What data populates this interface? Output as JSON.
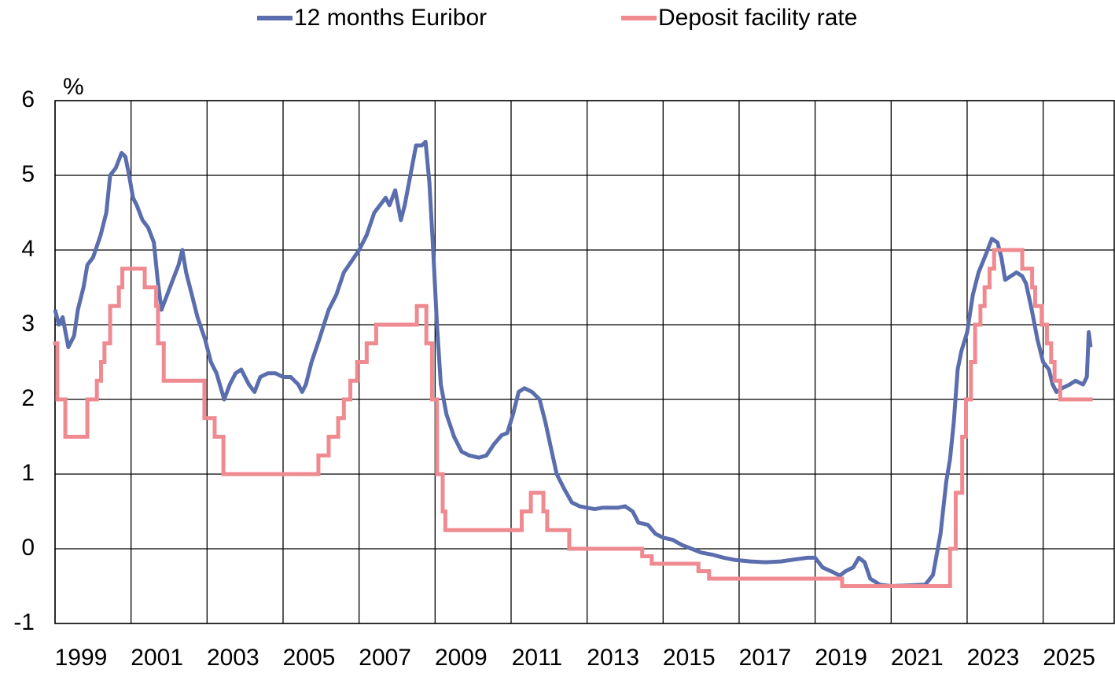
{
  "chart_data": {
    "type": "line",
    "y_unit_label": "%",
    "legend": "top",
    "grid": true,
    "xlim": [
      1999,
      2026.87
    ],
    "ylim": [
      -1,
      6
    ],
    "yticks": [
      -1,
      0,
      1,
      2,
      3,
      4,
      5,
      6
    ],
    "xticks": [
      {
        "value": 1999,
        "label": "1999"
      },
      {
        "value": 2001,
        "label": "2001"
      },
      {
        "value": 2003,
        "label": "2003"
      },
      {
        "value": 2005,
        "label": "2005"
      },
      {
        "value": 2007,
        "label": "2007"
      },
      {
        "value": 2009,
        "label": "2009"
      },
      {
        "value": 2011,
        "label": "2011"
      },
      {
        "value": 2013,
        "label": "2013"
      },
      {
        "value": 2015,
        "label": "2015"
      },
      {
        "value": 2017,
        "label": "2017"
      },
      {
        "value": 2019,
        "label": "2019"
      },
      {
        "value": 2021,
        "label": "2021"
      },
      {
        "value": 2023,
        "label": "2023"
      },
      {
        "value": 2025,
        "label": "2025"
      }
    ],
    "series": [
      {
        "name": "12 months Euribor",
        "color": "#5a6dad",
        "drawstyle": "line",
        "x": [
          1999.0,
          1999.1,
          1999.2,
          1999.35,
          1999.5,
          1999.6,
          1999.75,
          1999.85,
          2000.0,
          2000.2,
          2000.35,
          2000.45,
          2000.6,
          2000.75,
          2000.85,
          2000.95,
          2001.05,
          2001.15,
          2001.3,
          2001.45,
          2001.6,
          2001.7,
          2001.8,
          2001.95,
          2002.1,
          2002.25,
          2002.35,
          2002.45,
          2002.6,
          2002.75,
          2002.95,
          2003.1,
          2003.25,
          2003.45,
          2003.6,
          2003.75,
          2003.9,
          2004.1,
          2004.25,
          2004.4,
          2004.6,
          2004.8,
          2005.0,
          2005.2,
          2005.4,
          2005.5,
          2005.6,
          2005.75,
          2005.95,
          2006.2,
          2006.4,
          2006.6,
          2006.8,
          2007.0,
          2007.2,
          2007.4,
          2007.55,
          2007.7,
          2007.8,
          2007.95,
          2008.1,
          2008.2,
          2008.35,
          2008.5,
          2008.65,
          2008.75,
          2008.85,
          2008.95,
          2009.05,
          2009.15,
          2009.3,
          2009.5,
          2009.7,
          2009.9,
          2010.15,
          2010.35,
          2010.55,
          2010.75,
          2010.9,
          2011.05,
          2011.2,
          2011.35,
          2011.55,
          2011.75,
          2011.9,
          2012.05,
          2012.2,
          2012.4,
          2012.6,
          2012.8,
          2013.0,
          2013.2,
          2013.4,
          2013.6,
          2013.8,
          2014.0,
          2014.2,
          2014.35,
          2014.6,
          2014.8,
          2015.0,
          2015.25,
          2015.5,
          2015.75,
          2016.0,
          2016.3,
          2016.6,
          2016.9,
          2017.3,
          2017.7,
          2018.1,
          2018.5,
          2018.8,
          2019.0,
          2019.2,
          2019.5,
          2019.65,
          2019.8,
          2020.0,
          2020.15,
          2020.3,
          2020.45,
          2020.7,
          2021.0,
          2021.5,
          2021.9,
          2022.1,
          2022.3,
          2022.45,
          2022.55,
          2022.65,
          2022.75,
          2022.85,
          2023.0,
          2023.15,
          2023.3,
          2023.5,
          2023.65,
          2023.8,
          2023.9,
          2024.0,
          2024.15,
          2024.3,
          2024.45,
          2024.55,
          2024.7,
          2024.85,
          2025.0,
          2025.15,
          2025.25,
          2025.35,
          2025.5,
          2025.7,
          2025.85,
          2026.05,
          2026.15,
          2026.2,
          2026.25
        ],
        "values": [
          3.2,
          3.0,
          3.1,
          2.7,
          2.85,
          3.2,
          3.5,
          3.8,
          3.9,
          4.2,
          4.5,
          5.0,
          5.1,
          5.3,
          5.25,
          5.0,
          4.7,
          4.6,
          4.4,
          4.3,
          4.1,
          3.6,
          3.2,
          3.4,
          3.6,
          3.8,
          4.0,
          3.7,
          3.4,
          3.1,
          2.8,
          2.5,
          2.35,
          2.0,
          2.2,
          2.35,
          2.4,
          2.2,
          2.1,
          2.3,
          2.35,
          2.35,
          2.3,
          2.3,
          2.2,
          2.1,
          2.2,
          2.5,
          2.8,
          3.2,
          3.4,
          3.7,
          3.85,
          4.0,
          4.2,
          4.5,
          4.6,
          4.7,
          4.6,
          4.8,
          4.4,
          4.6,
          5.0,
          5.4,
          5.4,
          5.45,
          4.9,
          4.0,
          3.0,
          2.2,
          1.8,
          1.5,
          1.3,
          1.25,
          1.22,
          1.25,
          1.4,
          1.52,
          1.55,
          1.8,
          2.1,
          2.15,
          2.1,
          2.0,
          1.7,
          1.35,
          1.0,
          0.8,
          0.62,
          0.57,
          0.55,
          0.53,
          0.55,
          0.55,
          0.55,
          0.57,
          0.5,
          0.35,
          0.32,
          0.2,
          0.15,
          0.12,
          0.05,
          0.0,
          -0.05,
          -0.08,
          -0.12,
          -0.15,
          -0.17,
          -0.18,
          -0.17,
          -0.14,
          -0.12,
          -0.12,
          -0.25,
          -0.32,
          -0.36,
          -0.3,
          -0.25,
          -0.12,
          -0.18,
          -0.4,
          -0.48,
          -0.5,
          -0.49,
          -0.48,
          -0.35,
          0.2,
          0.9,
          1.2,
          1.7,
          2.4,
          2.65,
          2.9,
          3.4,
          3.7,
          3.95,
          4.15,
          4.1,
          3.9,
          3.6,
          3.65,
          3.7,
          3.65,
          3.55,
          3.2,
          2.8,
          2.5,
          2.4,
          2.2,
          2.1,
          2.15,
          2.2,
          2.25,
          2.2,
          2.3,
          2.9,
          2.7
        ]
      },
      {
        "name": "Deposit facility rate",
        "color": "#ef8a91",
        "drawstyle": "steps-post",
        "x": [
          1999.0,
          1999.06,
          1999.27,
          1999.85,
          2000.1,
          2000.21,
          2000.3,
          2000.45,
          2000.68,
          2000.77,
          2001.36,
          2001.66,
          2001.71,
          2001.86,
          2002.93,
          2003.2,
          2003.43,
          2005.93,
          2006.2,
          2006.45,
          2006.6,
          2006.77,
          2006.95,
          2007.2,
          2007.45,
          2008.52,
          2008.77,
          2008.92,
          2009.05,
          2009.2,
          2009.27,
          2011.28,
          2011.52,
          2011.85,
          2011.95,
          2012.53,
          2014.45,
          2014.7,
          2015.93,
          2016.21,
          2019.71,
          2022.55,
          2022.7,
          2022.87,
          2022.97,
          2023.1,
          2023.21,
          2023.35,
          2023.46,
          2023.59,
          2023.71,
          2024.45,
          2024.71,
          2024.79,
          2024.96,
          2025.1,
          2025.21,
          2025.3,
          2025.45,
          2026.25
        ],
        "values": [
          2.75,
          2.0,
          1.5,
          2.0,
          2.25,
          2.5,
          2.75,
          3.25,
          3.5,
          3.75,
          3.5,
          3.25,
          2.75,
          2.25,
          1.75,
          1.5,
          1.0,
          1.25,
          1.5,
          1.75,
          2.0,
          2.25,
          2.5,
          2.75,
          3.0,
          3.25,
          2.75,
          2.0,
          1.0,
          0.5,
          0.25,
          0.5,
          0.75,
          0.5,
          0.25,
          0.0,
          -0.1,
          -0.2,
          -0.3,
          -0.4,
          -0.5,
          0.0,
          0.75,
          1.5,
          2.0,
          2.5,
          3.0,
          3.25,
          3.5,
          3.75,
          4.0,
          3.75,
          3.5,
          3.25,
          3.0,
          2.75,
          2.5,
          2.25,
          2.0,
          2.0
        ]
      }
    ]
  }
}
